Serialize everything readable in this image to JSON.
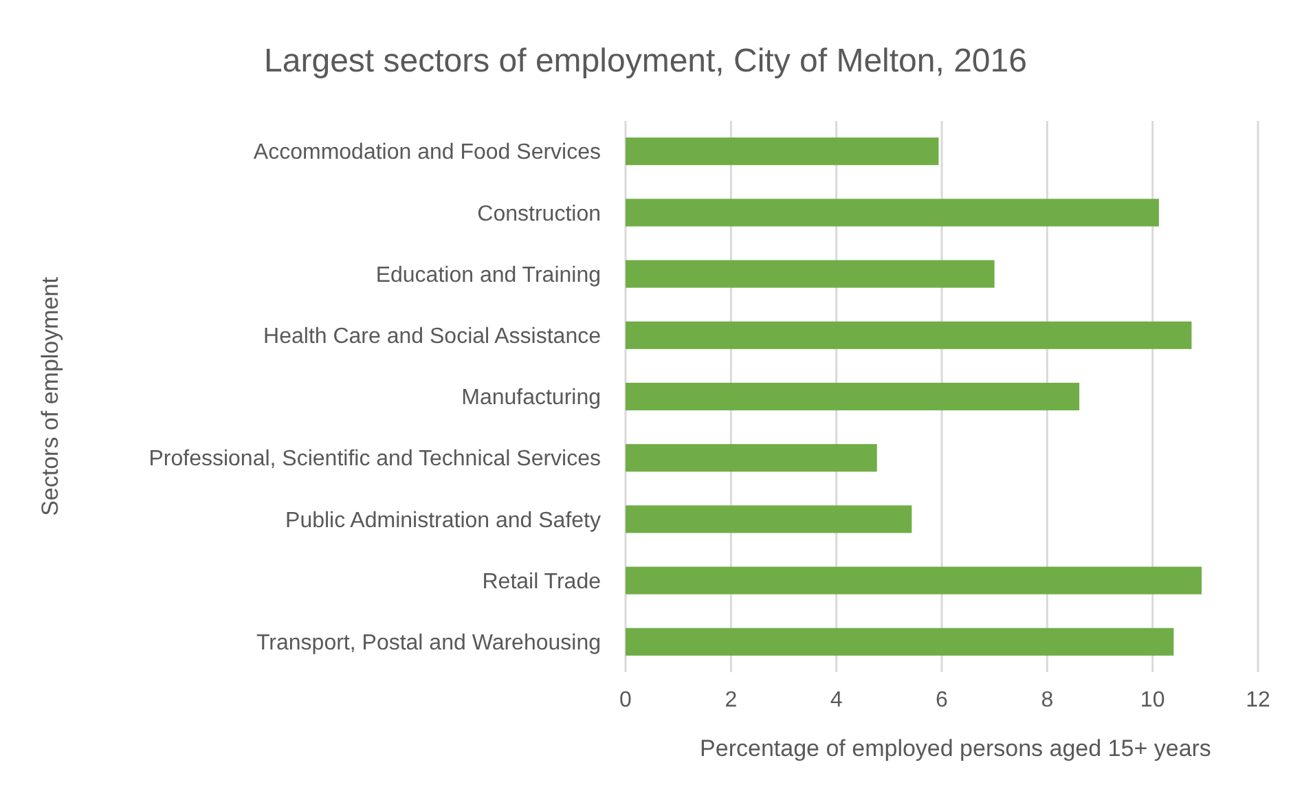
{
  "chart_data": {
    "type": "bar",
    "orientation": "horizontal",
    "title": "Largest sectors of employment, City of Melton, 2016",
    "xlabel": "Percentage of employed persons aged 15+ years",
    "ylabel": "Sectors of employment",
    "categories": [
      "Accommodation and Food Services",
      "Construction",
      "Education and Training",
      "Health Care and Social Assistance",
      "Manufacturing",
      "Professional, Scientific and Technical Services",
      "Public Administration and Safety",
      "Retail Trade",
      "Transport, Postal and Warehousing"
    ],
    "values": [
      5.94,
      10.12,
      7.0,
      10.74,
      8.61,
      4.77,
      5.43,
      10.93,
      10.4
    ],
    "color": "#70ad47",
    "xlim": [
      0,
      12
    ],
    "xticks": [
      0,
      2,
      4,
      6,
      8,
      10,
      12
    ],
    "grid": "x"
  }
}
